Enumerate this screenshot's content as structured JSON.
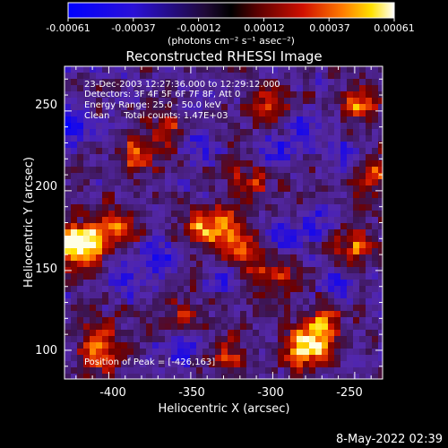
{
  "colorbar": {
    "tick_labels": [
      "-0.00061",
      "-0.00037",
      "-0.00012",
      "0.00012",
      "0.00037",
      "0.00061"
    ],
    "units_label": "(photons cm⁻² s⁻¹ asec⁻²)"
  },
  "plot": {
    "title": "Reconstructed RHESSI Image",
    "xlabel": "Heliocentric X (arcsec)",
    "ylabel": "Heliocentric Y (arcsec)",
    "xticks": [
      "-400",
      "-350",
      "-300",
      "-250"
    ],
    "yticks": [
      "100",
      "150",
      "200",
      "250"
    ]
  },
  "annotations": {
    "time_range": "23-Dec-2003 12:27:36.000 to 12:29:12.000",
    "detectors": "Detectors: 3F 4F 5F 6F 7F 8F, Att 0",
    "energy_range": "Energy Range: 25.0 - 50.0 keV",
    "method_counts": "Clean     Total counts: 1.47E+03",
    "peak_position": "Position of Peak = [-426,163]"
  },
  "footer": {
    "date_time": "8-May-2022 02:39"
  },
  "chart_data": {
    "type": "heatmap",
    "title": "Reconstructed RHESSI Image",
    "xlabel": "Heliocentric X (arcsec)",
    "ylabel": "Heliocentric Y (arcsec)",
    "xlim": [
      -427,
      -233
    ],
    "ylim": [
      82,
      278
    ],
    "zlim": [
      -0.00061,
      0.00061
    ],
    "colormap": "blue-black-red-yellow-white",
    "bright_regions": [
      {
        "x": -424,
        "y": 166,
        "level": 1.0
      },
      {
        "x": -410,
        "y": 168,
        "level": 0.75
      },
      {
        "x": -395,
        "y": 178,
        "level": 0.6
      },
      {
        "x": -345,
        "y": 176,
        "level": 0.6
      },
      {
        "x": -330,
        "y": 178,
        "level": 0.7
      },
      {
        "x": -320,
        "y": 160,
        "level": 0.55
      },
      {
        "x": -300,
        "y": 145,
        "level": 0.55
      },
      {
        "x": -280,
        "y": 100,
        "level": 0.95
      },
      {
        "x": -270,
        "y": 115,
        "level": 0.75
      },
      {
        "x": -245,
        "y": 255,
        "level": 0.75
      },
      {
        "x": -250,
        "y": 165,
        "level": 0.6
      },
      {
        "x": -385,
        "y": 222,
        "level": 0.55
      },
      {
        "x": -365,
        "y": 238,
        "level": 0.5
      },
      {
        "x": -405,
        "y": 110,
        "level": 0.55
      },
      {
        "x": -405,
        "y": 93,
        "level": 0.5
      },
      {
        "x": -325,
        "y": 95,
        "level": 0.5
      },
      {
        "x": -300,
        "y": 255,
        "level": 0.5
      },
      {
        "x": -315,
        "y": 205,
        "level": 0.5
      },
      {
        "x": -355,
        "y": 120,
        "level": 0.45
      },
      {
        "x": -240,
        "y": 210,
        "level": 0.55
      }
    ],
    "dark_regions": [
      {
        "x": -425,
        "y": 242,
        "level": -0.7
      },
      {
        "x": -275,
        "y": 178,
        "level": -0.55
      },
      {
        "x": -294,
        "y": 170,
        "level": -0.5
      },
      {
        "x": -330,
        "y": 148,
        "level": -0.45
      },
      {
        "x": -355,
        "y": 102,
        "level": -0.55
      },
      {
        "x": -390,
        "y": 145,
        "level": -0.45
      },
      {
        "x": -370,
        "y": 160,
        "level": -0.45
      },
      {
        "x": -280,
        "y": 240,
        "level": -0.45
      },
      {
        "x": -300,
        "y": 225,
        "level": -0.4
      },
      {
        "x": -348,
        "y": 228,
        "level": -0.4
      },
      {
        "x": -260,
        "y": 140,
        "level": -0.45
      },
      {
        "x": -255,
        "y": 220,
        "level": -0.4
      }
    ],
    "peak": {
      "x": -426,
      "y": 163
    }
  }
}
